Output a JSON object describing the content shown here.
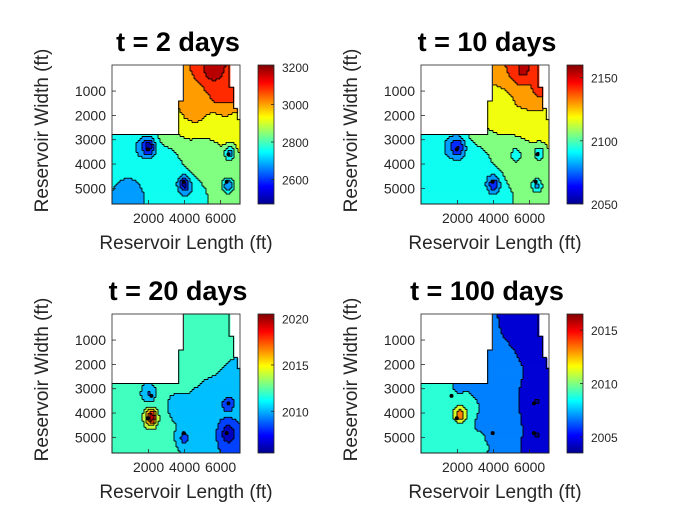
{
  "chart_data": [
    {
      "type": "contour",
      "title": "t = 2 days",
      "xlabel": "Reservoir Length (ft)",
      "ylabel": "Reservoir Width (ft)",
      "x_ticks": [
        "2000",
        "4000",
        "6000"
      ],
      "y_ticks": [
        "1000",
        "2000",
        "3000",
        "4000",
        "5000"
      ],
      "y_direction": "reverse",
      "colorbar": {
        "ticks": [
          "3200",
          "3000",
          "2800",
          "2600"
        ],
        "range": [
          2470,
          3210
        ]
      },
      "colormap": "jet",
      "wells": [
        [
          3400,
          2000
        ],
        [
          4700,
          4000
        ],
        [
          3600,
          6500
        ],
        [
          4700,
          6400
        ]
      ],
      "field_values": {
        "top-right": 3150,
        "upper-middle": 2990,
        "left": 2720,
        "center": 2760,
        "right": 2820,
        "lower-left": 2700,
        "well-min": 2480
      }
    },
    {
      "type": "contour",
      "title": "t = 10 days",
      "xlabel": "Reservoir Length (ft)",
      "ylabel": "Reservoir Width (ft)",
      "x_ticks": [
        "2000",
        "4000",
        "6000"
      ],
      "y_ticks": [
        "1000",
        "2000",
        "3000",
        "4000",
        "5000"
      ],
      "y_direction": "reverse",
      "colorbar": {
        "ticks": [
          "2150",
          "2100",
          "2050"
        ],
        "range": [
          2050,
          2160
        ]
      },
      "colormap": "jet",
      "wells": [
        [
          3400,
          2000
        ],
        [
          4700,
          4000
        ],
        [
          3600,
          6500
        ],
        [
          4700,
          6400
        ]
      ],
      "field_values": {
        "top-right": 2150,
        "upper-middle": 2120,
        "left": 2085,
        "center": 2090,
        "right": 2105,
        "lower-left": 2090,
        "well-min": 2052
      }
    },
    {
      "type": "contour",
      "title": "t = 20 days",
      "xlabel": "Reservoir Length (ft)",
      "ylabel": "Reservoir Width (ft)",
      "x_ticks": [
        "2000",
        "4000",
        "6000"
      ],
      "y_ticks": [
        "1000",
        "2000",
        "3000",
        "4000",
        "5000"
      ],
      "y_direction": "reverse",
      "colorbar": {
        "ticks": [
          "2020",
          "2015",
          "2010"
        ],
        "range": [
          2005.5,
          2020.5
        ]
      },
      "colormap": "jet",
      "wells": [
        [
          3300,
          2200
        ],
        [
          4200,
          2000
        ],
        [
          4800,
          4000
        ],
        [
          3600,
          6500
        ],
        [
          4800,
          6400
        ]
      ],
      "field_values": {
        "top-right": 2013,
        "center": 2011,
        "lower-left": 2013,
        "right": 2009,
        "hot-well": 2019
      }
    },
    {
      "type": "contour",
      "title": "t = 100 days",
      "xlabel": "Reservoir Length (ft)",
      "ylabel": "Reservoir Width (ft)",
      "x_ticks": [
        "2000",
        "4000",
        "6000"
      ],
      "y_ticks": [
        "1000",
        "2000",
        "3000",
        "4000",
        "5000"
      ],
      "y_direction": "reverse",
      "colorbar": {
        "ticks": [
          "2015",
          "2010",
          "2005"
        ],
        "range": [
          2003.5,
          2016.5
        ]
      },
      "colormap": "jet",
      "wells": [
        [
          3300,
          1700
        ],
        [
          4200,
          2000
        ],
        [
          4800,
          4000
        ],
        [
          3600,
          6300
        ],
        [
          4800,
          6300
        ]
      ],
      "field_values": {
        "left": 2009,
        "center": 2006.5,
        "right": 2004.5,
        "hot-well": 2012
      }
    }
  ]
}
